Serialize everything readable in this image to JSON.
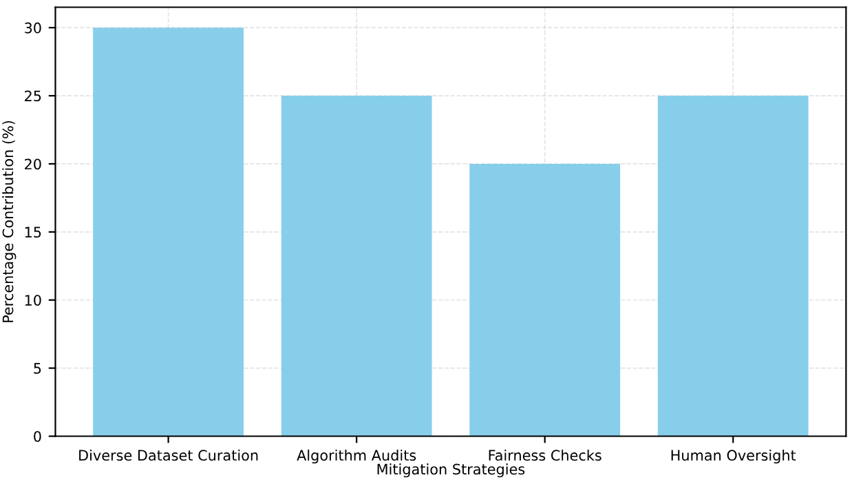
{
  "chart_data": {
    "type": "bar",
    "xlabel": "Mitigation Strategies",
    "ylabel": "Percentage Contribution (%)",
    "categories": [
      "Diverse Dataset Curation",
      "Algorithm Audits",
      "Fairness Checks",
      "Human Oversight"
    ],
    "values": [
      30,
      25,
      20,
      25
    ],
    "color": "#87ceeb",
    "ylim": [
      0,
      31.5
    ],
    "yticks": [
      0,
      5,
      10,
      15,
      20,
      25,
      30
    ],
    "grid": true,
    "line_style": "dashed"
  }
}
